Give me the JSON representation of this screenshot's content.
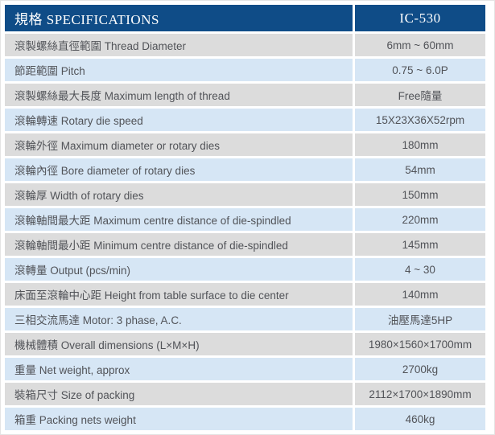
{
  "table": {
    "header": {
      "spec_label": "規格 SPECIFICATIONS",
      "model_label": "IC-530"
    },
    "rows": [
      {
        "label": "滾製螺絲直徑範圍 Thread Diameter",
        "value": "6mm ~ 60mm"
      },
      {
        "label": "節距範圍 Pitch",
        "value": "0.75 ~ 6.0P"
      },
      {
        "label": "滾製螺絲最大長度 Maximum length of thread",
        "value": "Free隨量"
      },
      {
        "label": "滾輪轉速 Rotary die speed",
        "value": "15X23X36X52rpm"
      },
      {
        "label": "滾輪外徑 Maximum diameter or rotary dies",
        "value": "180mm"
      },
      {
        "label": "滾輪內徑 Bore diameter of rotary dies",
        "value": "54mm"
      },
      {
        "label": "滾輪厚 Width of rotary dies",
        "value": "150mm"
      },
      {
        "label": "滾輪軸間最大距 Maximum centre distance of die-spindled",
        "value": "220mm"
      },
      {
        "label": "滾輪軸間最小距 Minimum centre distance of die-spindled",
        "value": "145mm"
      },
      {
        "label": "滾轉量 Output (pcs/min)",
        "value": "4 ~ 30"
      },
      {
        "label": "床面至滾輪中心距 Height from table surface to die center",
        "value": "140mm"
      },
      {
        "label": "三相交流馬達 Motor: 3 phase, A.C.",
        "value": "油壓馬達5HP"
      },
      {
        "label": "機械體積 Overall dimensions (L×M×H)",
        "value": "1980×1560×1700mm"
      },
      {
        "label": "重量 Net weight, approx",
        "value": "2700kg"
      },
      {
        "label": "裝箱尺寸 Size of packing",
        "value": "2112×1700×1890mm"
      },
      {
        "label": "箱重 Packing nets weight",
        "value": "460kg"
      }
    ],
    "colors": {
      "header_bg": "#0f4c87",
      "header_text": "#ffffff",
      "row_gray_bg": "#dcdcdc",
      "row_blue_bg": "#d6e6f5",
      "body_text": "#515358"
    }
  }
}
